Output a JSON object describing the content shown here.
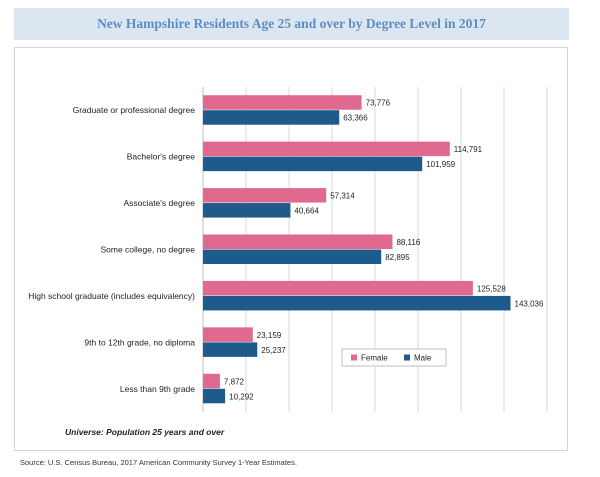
{
  "title": "New Hampshire Residents Age 25 and over by Degree Level in 2017",
  "universe_note": "Universe: Population 25 years and over",
  "source": "Source: U.S. Census Bureau, 2017 American Community Survey 1-Year Estimates.",
  "colors": {
    "female": "#e06a8f",
    "male": "#1f5a8c",
    "grid": "#d9d9d9",
    "title_bg": "#dce6f1",
    "title_text": "#5b8fc4"
  },
  "chart_data": {
    "type": "bar",
    "orientation": "horizontal",
    "categories": [
      "Graduate or professional degree",
      "Bachelor's degree",
      "Associate's degree",
      "Some college, no degree",
      "High school graduate (includes equivalency)",
      "9th to 12th grade, no diploma",
      "Less than 9th grade"
    ],
    "series": [
      {
        "name": "Female",
        "values": [
          73776,
          114791,
          57314,
          88116,
          125528,
          23159,
          7872
        ],
        "labels": [
          "73,776",
          "114,791",
          "57,314",
          "88,116",
          "125,528",
          "23,159",
          "7,872"
        ]
      },
      {
        "name": "Male",
        "values": [
          63366,
          101959,
          40664,
          82895,
          143036,
          25237,
          10292
        ],
        "labels": [
          "63,366",
          "101,959",
          "40,664",
          "82,895",
          "143,036",
          "25,237",
          "10,292"
        ]
      }
    ],
    "xlim": [
      0,
      160000
    ],
    "grid": true,
    "legend": "bottom-right"
  }
}
